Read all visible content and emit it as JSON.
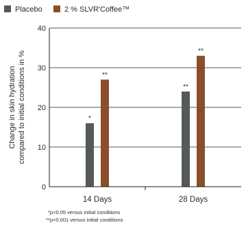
{
  "chart_data": {
    "type": "bar",
    "categories": [
      "14 Days",
      "28 Days"
    ],
    "series": [
      {
        "name": "Placebo",
        "color": "#56595a",
        "values": [
          16,
          24
        ],
        "labels": [
          "*",
          "**"
        ]
      },
      {
        "name": "2 % SLVR'Coffee™",
        "color": "#8a4e2b",
        "values": [
          27,
          33
        ],
        "labels": [
          "**",
          "**"
        ]
      }
    ],
    "ylabel_lines": [
      "Change in skin hydration",
      "compared to initial conditions in %"
    ],
    "ylim": [
      0,
      40
    ],
    "yticks": [
      0,
      10,
      20,
      30,
      40
    ],
    "grid": true,
    "legend_position": "top-left",
    "footnotes": [
      "*p<0.05 versus initial conditions",
      "**p<0.001 versus initial conditions"
    ]
  }
}
